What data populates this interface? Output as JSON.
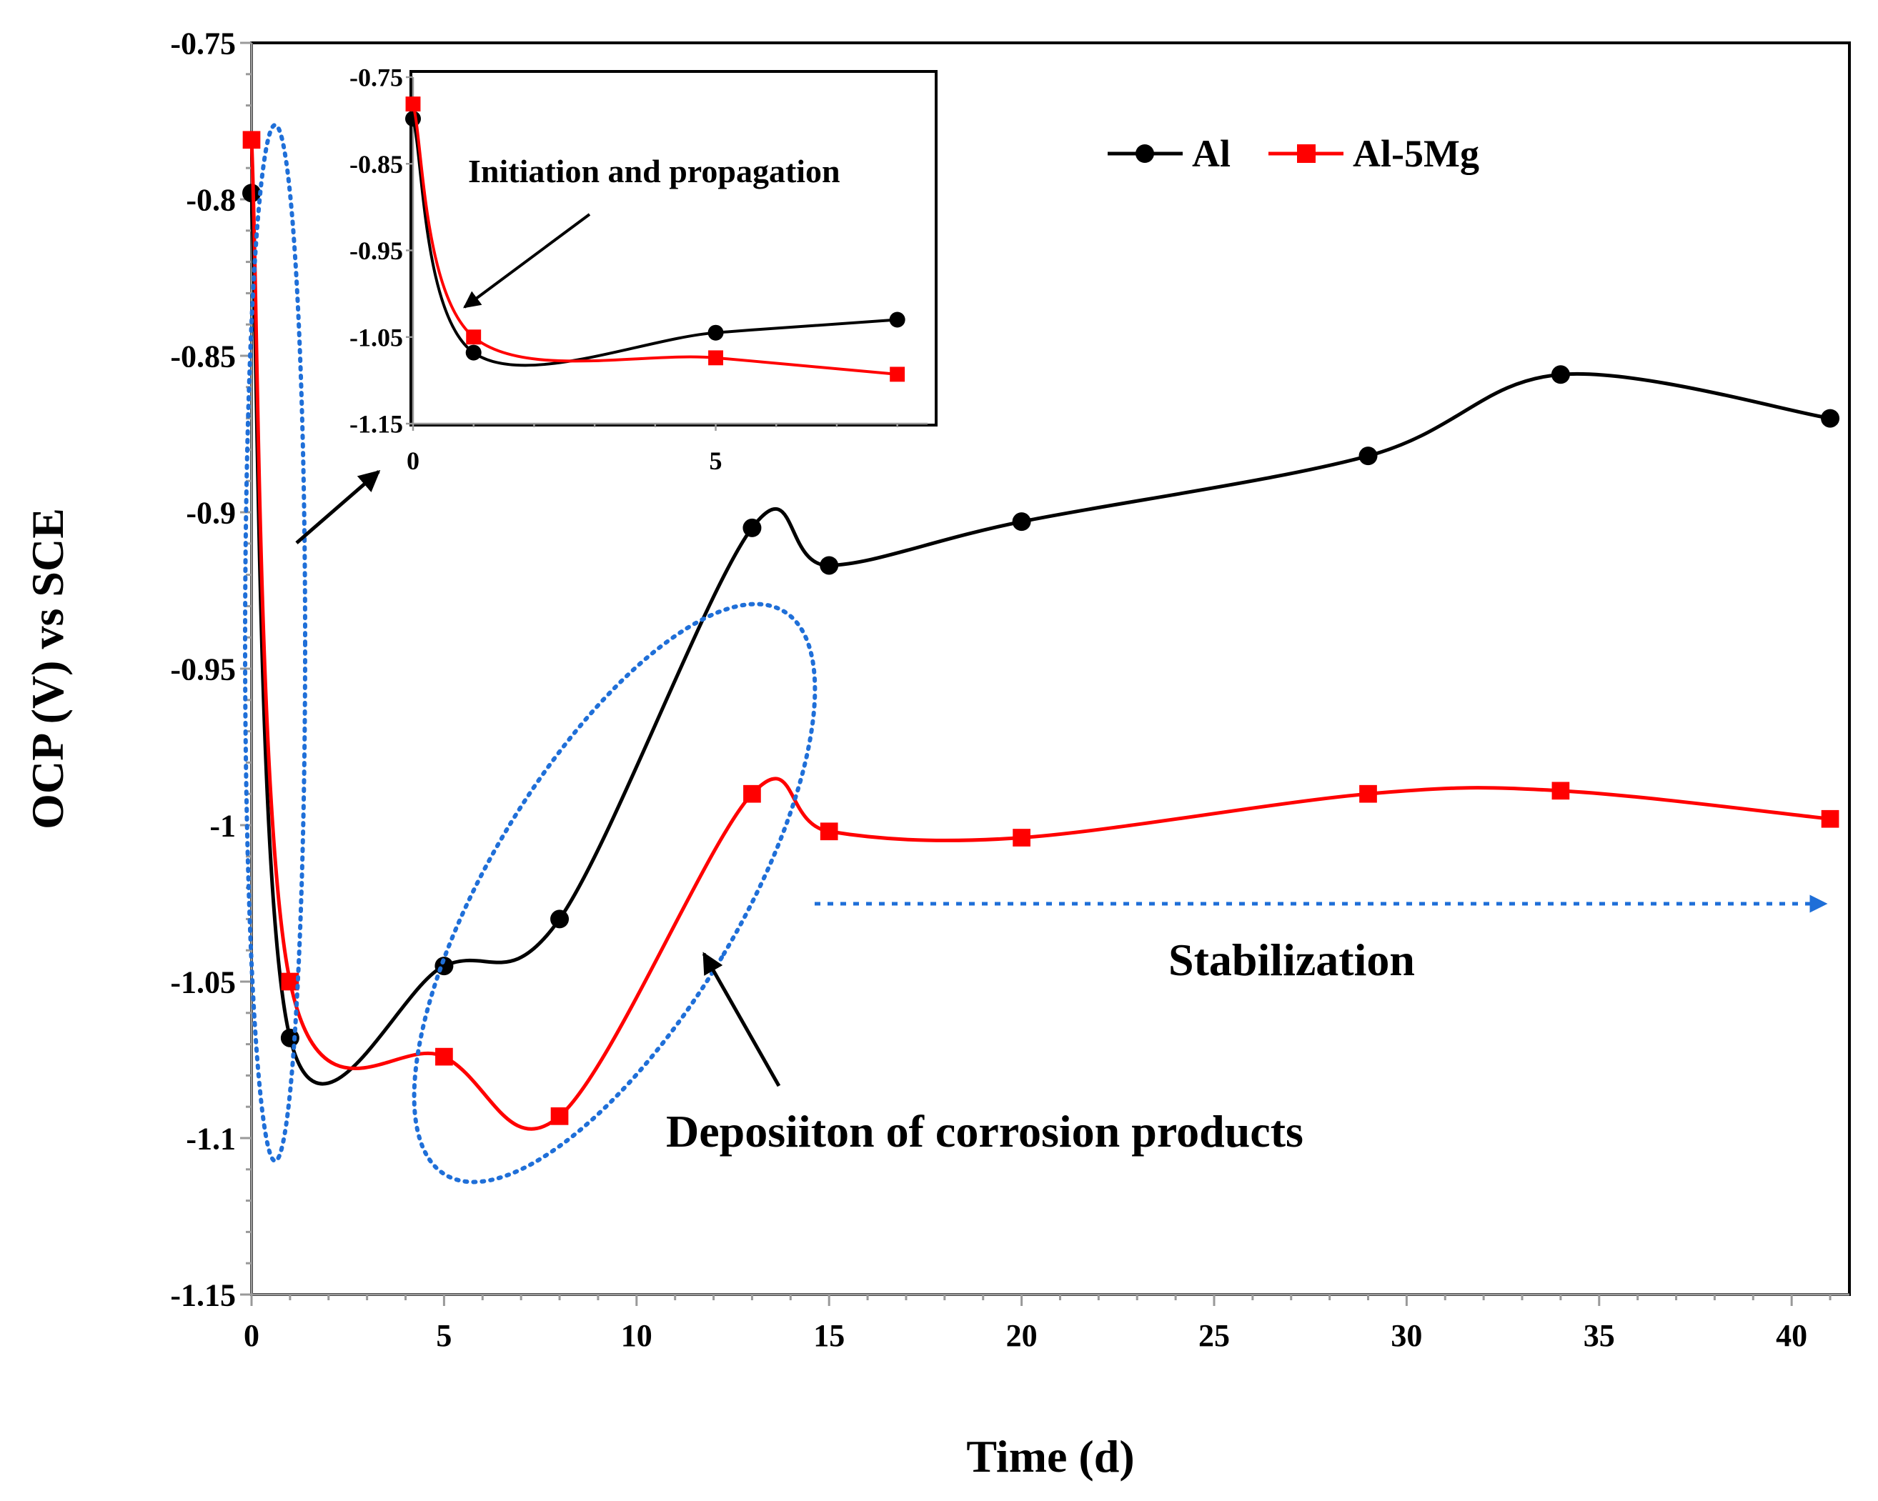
{
  "chart_data": [
    {
      "type": "line",
      "role": "main",
      "xlabel": "Time (d)",
      "ylabel": "OCP (V) vs SCE",
      "xlim": [
        0,
        41.5
      ],
      "ylim": [
        -1.15,
        -0.75
      ],
      "xticks": [
        0,
        5,
        10,
        15,
        20,
        25,
        30,
        35,
        40
      ],
      "xtick_labels": [
        "0",
        "5",
        "10",
        "15",
        "20",
        "25",
        "30",
        "35",
        "40"
      ],
      "yticks": [
        -0.75,
        -0.8,
        -0.85,
        -0.9,
        -0.95,
        -1,
        -1.05,
        -1.1,
        -1.15
      ],
      "ytick_labels": [
        "-0.75",
        "-0.8",
        "-0.85",
        "-0.9",
        "-0.95",
        "-1",
        "-1.05",
        "-1.1",
        "-1.15"
      ],
      "series": [
        {
          "name": "Al",
          "color": "#000000",
          "marker": "circle",
          "x": [
            0,
            1,
            5,
            8,
            13,
            15,
            20,
            29,
            34,
            41
          ],
          "y": [
            -0.798,
            -1.068,
            -1.045,
            -1.03,
            -0.905,
            -0.917,
            -0.903,
            -0.882,
            -0.856,
            -0.87
          ]
        },
        {
          "name": "Al-5Mg",
          "color": "#ff0000",
          "marker": "square",
          "x": [
            0,
            1,
            5,
            8,
            13,
            15,
            20,
            29,
            34,
            41
          ],
          "y": [
            -0.781,
            -1.05,
            -1.074,
            -1.093,
            -0.99,
            -1.002,
            -1.004,
            -0.99,
            -0.989,
            -0.998
          ]
        }
      ],
      "legend": [
        "Al",
        "Al-5Mg"
      ],
      "legend_position": "top-right",
      "annotations": {
        "stabilization": "Stabilization",
        "deposition": "Deposiiton of corrosion products"
      }
    },
    {
      "type": "line",
      "role": "inset",
      "xlim": [
        0,
        8.5
      ],
      "ylim": [
        -1.15,
        -0.75
      ],
      "xticks": [
        0,
        5
      ],
      "xtick_labels": [
        "0",
        "5"
      ],
      "yticks": [
        -0.75,
        -0.85,
        -0.95,
        -1.05,
        -1.15
      ],
      "ytick_labels": [
        "-0.75",
        "-0.85",
        "-0.95",
        "-1.05",
        "-1.15"
      ],
      "series": [
        {
          "name": "Al",
          "color": "#000000",
          "marker": "circle",
          "x": [
            0,
            1,
            5,
            8
          ],
          "y": [
            -0.798,
            -1.068,
            -1.045,
            -1.03
          ]
        },
        {
          "name": "Al-5Mg",
          "color": "#ff0000",
          "marker": "square",
          "x": [
            0,
            1,
            5,
            8
          ],
          "y": [
            -0.781,
            -1.05,
            -1.074,
            -1.093
          ]
        }
      ],
      "annotations": {
        "initiation": "Initiation and propagation"
      }
    }
  ]
}
